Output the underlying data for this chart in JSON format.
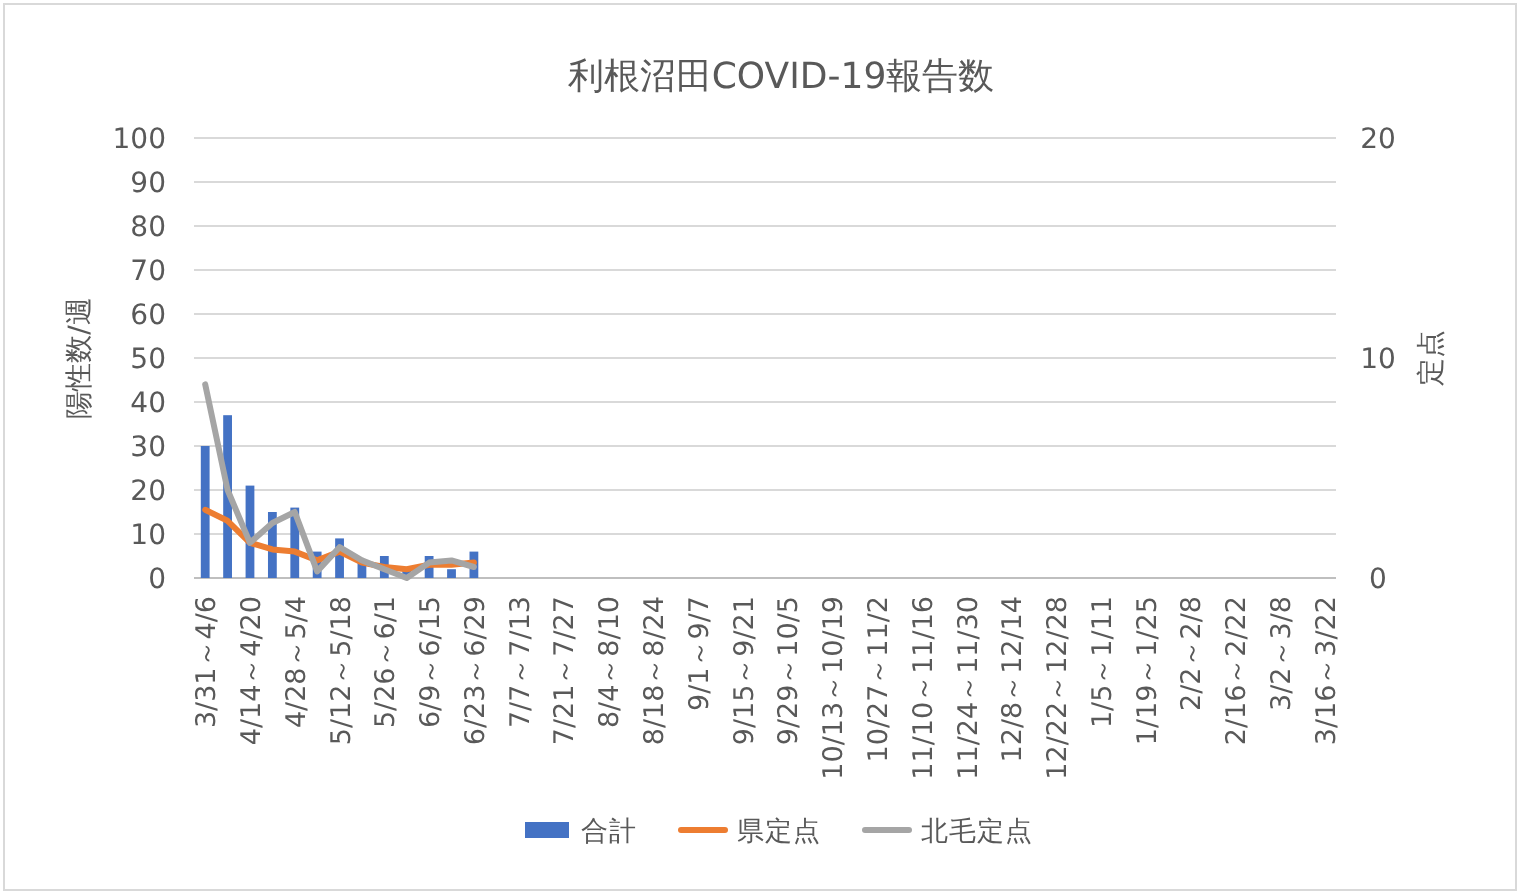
{
  "chart_data": {
    "type": "bar",
    "title": "利根沼田COVID-19報告数",
    "ylabel": "陽性数/週",
    "y2label": "定点",
    "categories": [
      "3/31～4/6",
      null,
      "4/14～4/20",
      null,
      "4/28～5/4",
      null,
      "5/12～5/18",
      null,
      "5/26～6/1",
      null,
      "6/9～6/15",
      null,
      "6/23～6/29",
      null,
      "7/7～7/13",
      null,
      "7/21～7/27",
      null,
      "8/4～8/10",
      null,
      "8/18～8/24",
      null,
      "9/1～9/7",
      null,
      "9/15～9/21",
      null,
      "9/29～10/5",
      null,
      "10/13～10/19",
      null,
      "10/27～11/2",
      null,
      "11/10～11/16",
      null,
      "11/24～11/30",
      null,
      "12/8～12/14",
      null,
      "12/22～12/28",
      null,
      "1/5～1/11",
      null,
      "1/19～1/25",
      null,
      "2/2～2/8",
      null,
      "2/16～2/22",
      null,
      "3/2～3/8",
      null,
      "3/16～3/22"
    ],
    "series": [
      {
        "name": "合計",
        "color": "#4472c4",
        "values": [
          30,
          37,
          21,
          15,
          16,
          6,
          9,
          4,
          5,
          2,
          5,
          2,
          6,
          null,
          null,
          null,
          null,
          null,
          null,
          null,
          null,
          null,
          null,
          null,
          null,
          null,
          null,
          null,
          null,
          null,
          null,
          null,
          null,
          null,
          null,
          null,
          null,
          null,
          null,
          null,
          null,
          null,
          null,
          null,
          null,
          null,
          null,
          null,
          null,
          null,
          null
        ]
      },
      {
        "name": "県定点",
        "type": "line",
        "axis": "y2",
        "color": "#ed7d31",
        "values": [
          3.1,
          2.6,
          1.6,
          1.3,
          1.2,
          0.8,
          1.2,
          0.7,
          0.5,
          0.4,
          0.6,
          0.6,
          0.7,
          null,
          null,
          null,
          null,
          null,
          null,
          null,
          null,
          null,
          null,
          null,
          null,
          null,
          null,
          null,
          null,
          null,
          null,
          null,
          null,
          null,
          null,
          null,
          null,
          null,
          null,
          null,
          null,
          null,
          null,
          null,
          null,
          null,
          null,
          null,
          null,
          null,
          null
        ]
      },
      {
        "name": "北毛定点",
        "type": "line",
        "axis": "y2",
        "color": "#a5a5a5",
        "values": [
          8.8,
          4,
          1.6,
          2.5,
          3,
          0.3,
          1.4,
          0.8,
          0.4,
          0,
          0.7,
          0.8,
          0.5,
          null,
          null,
          null,
          null,
          null,
          null,
          null,
          null,
          null,
          null,
          null,
          null,
          null,
          null,
          null,
          null,
          null,
          null,
          null,
          null,
          null,
          null,
          null,
          null,
          null,
          null,
          null,
          null,
          null,
          null,
          null,
          null,
          null,
          null,
          null,
          null,
          null,
          null
        ]
      }
    ],
    "ylim": [
      0,
      100
    ],
    "yticks": [
      0,
      10,
      20,
      30,
      40,
      50,
      60,
      70,
      80,
      90,
      100
    ],
    "y2lim": [
      0,
      20
    ],
    "y2ticks": [
      0,
      10,
      20
    ],
    "grid": "y",
    "legend": "bottom"
  }
}
